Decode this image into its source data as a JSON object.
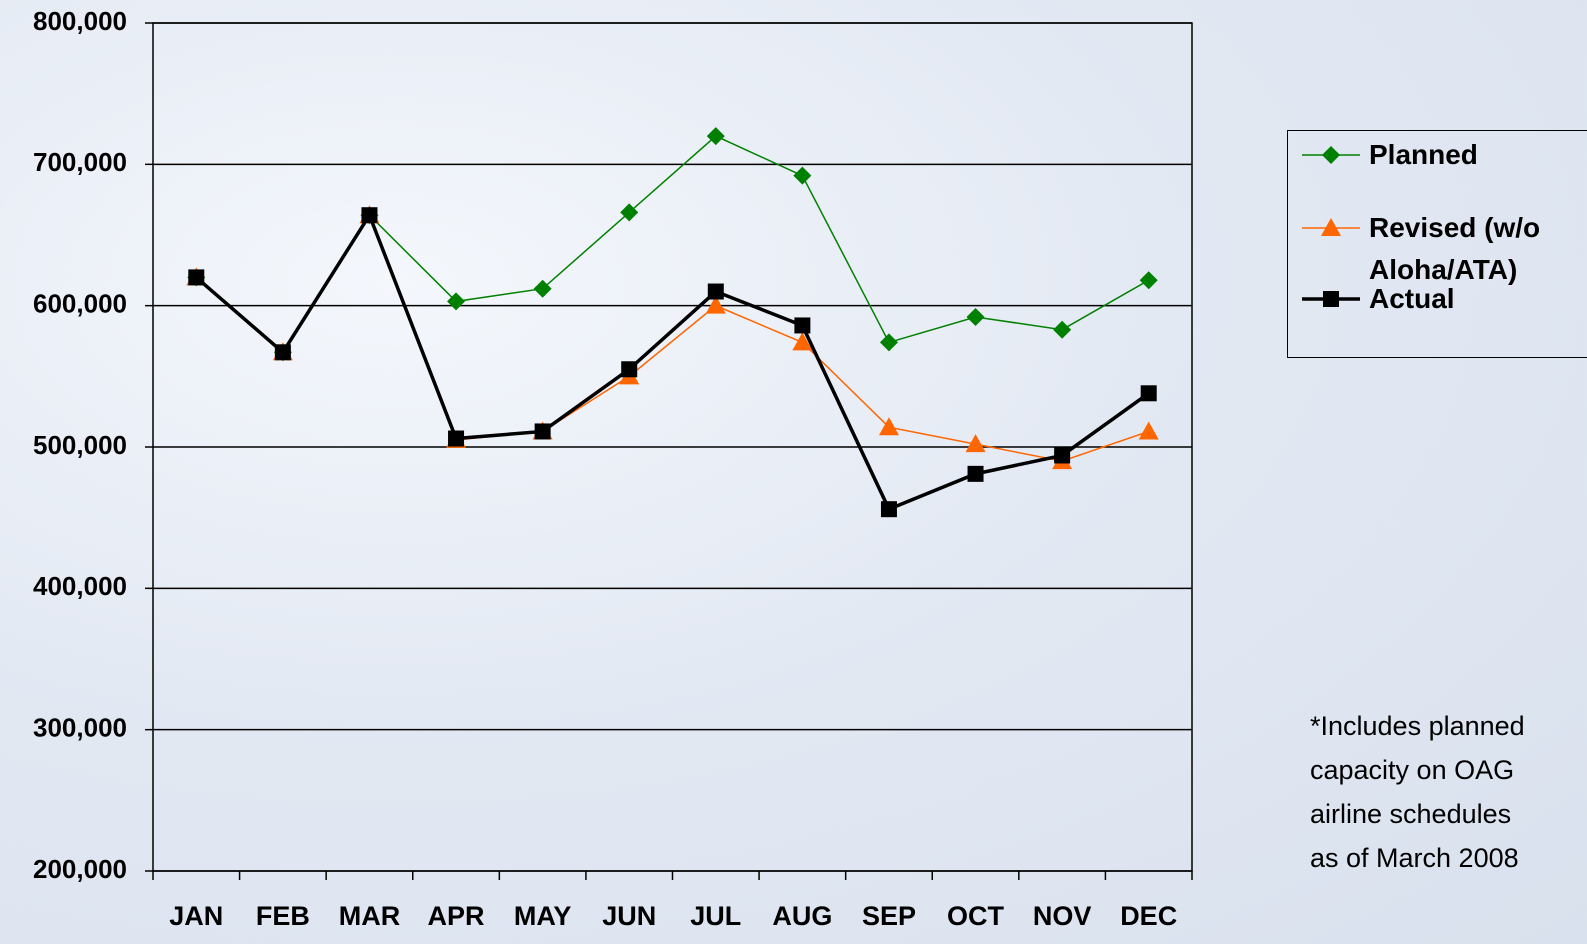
{
  "chart_data": {
    "type": "line",
    "categories": [
      "JAN",
      "FEB",
      "MAR",
      "APR",
      "MAY",
      "JUN",
      "JUL",
      "AUG",
      "SEP",
      "OCT",
      "NOV",
      "DEC"
    ],
    "series": [
      {
        "name": "Planned",
        "color": "#008000",
        "marker": "diamond",
        "values": [
          620000,
          567000,
          664000,
          603000,
          612000,
          666000,
          720000,
          692000,
          574000,
          592000,
          583000,
          618000
        ]
      },
      {
        "name": "Revised (w/o Aloha/ATA)",
        "color": "#ff6600",
        "marker": "triangle",
        "values": [
          620000,
          567000,
          664000,
          505000,
          511000,
          550000,
          600000,
          574000,
          514000,
          502000,
          490000,
          511000
        ]
      },
      {
        "name": "Actual",
        "color": "#000000",
        "marker": "square",
        "values": [
          620000,
          567000,
          664000,
          506000,
          511000,
          555000,
          610000,
          586000,
          456000,
          481000,
          494000,
          538000
        ]
      }
    ],
    "ylim": [
      200000,
      800000
    ],
    "yticks": [
      {
        "value": 200000,
        "label": "200,000"
      },
      {
        "value": 300000,
        "label": "300,000"
      },
      {
        "value": 400000,
        "label": "400,000"
      },
      {
        "value": 500000,
        "label": "500,000"
      },
      {
        "value": 600000,
        "label": "600,000"
      },
      {
        "value": 700000,
        "label": "700,000"
      },
      {
        "value": 800000,
        "label": "800,000"
      }
    ],
    "grid": true,
    "footnote": [
      "*Includes planned",
      "capacity on OAG",
      "airline schedules",
      "as of March 2008"
    ]
  }
}
